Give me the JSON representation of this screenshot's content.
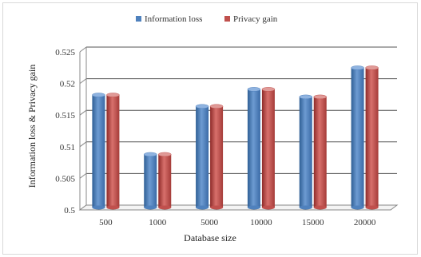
{
  "chart_data": {
    "type": "bar",
    "title": "",
    "categories": [
      "500",
      "1000",
      "5000",
      "10000",
      "15000",
      "20000"
    ],
    "series": [
      {
        "name": "Information loss",
        "values": [
          0.5178,
          0.5084,
          0.516,
          0.5187,
          0.5175,
          0.5221
        ],
        "color": "#4f81bd"
      },
      {
        "name": "Privacy gain",
        "values": [
          0.5178,
          0.5084,
          0.516,
          0.5187,
          0.5175,
          0.5221
        ],
        "color": "#c0504d"
      }
    ],
    "xlabel": "Database size",
    "ylabel": "Information loss & Privacy gain",
    "ylim": [
      0.5,
      0.525
    ],
    "yticks": [
      "0.5",
      "0.505",
      "0.51",
      "0.515",
      "0.52",
      "0.525"
    ],
    "grid": true,
    "legend": "top"
  }
}
